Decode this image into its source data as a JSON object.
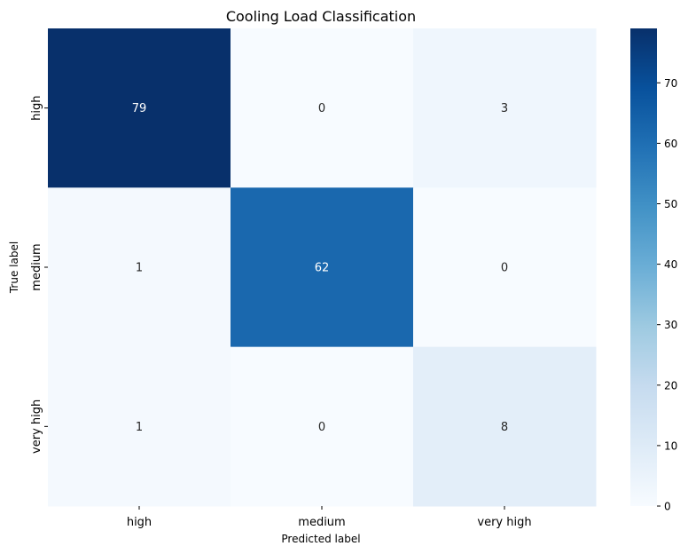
{
  "chart_data": {
    "type": "heatmap",
    "title": "Cooling Load Classification",
    "xlabel": "Predicted label",
    "ylabel": "True label",
    "x_categories": [
      "high",
      "medium",
      "very high"
    ],
    "y_categories": [
      "high",
      "medium",
      "very high"
    ],
    "values": [
      [
        79,
        0,
        3
      ],
      [
        1,
        62,
        0
      ],
      [
        1,
        0,
        8
      ]
    ],
    "colormap": "Blues",
    "colorbar": {
      "min": 0,
      "max": 79,
      "ticks": [
        0,
        10,
        20,
        30,
        40,
        50,
        60,
        70
      ]
    },
    "annotation_colors": {
      "light": "#ffffff",
      "dark": "#262626"
    }
  }
}
